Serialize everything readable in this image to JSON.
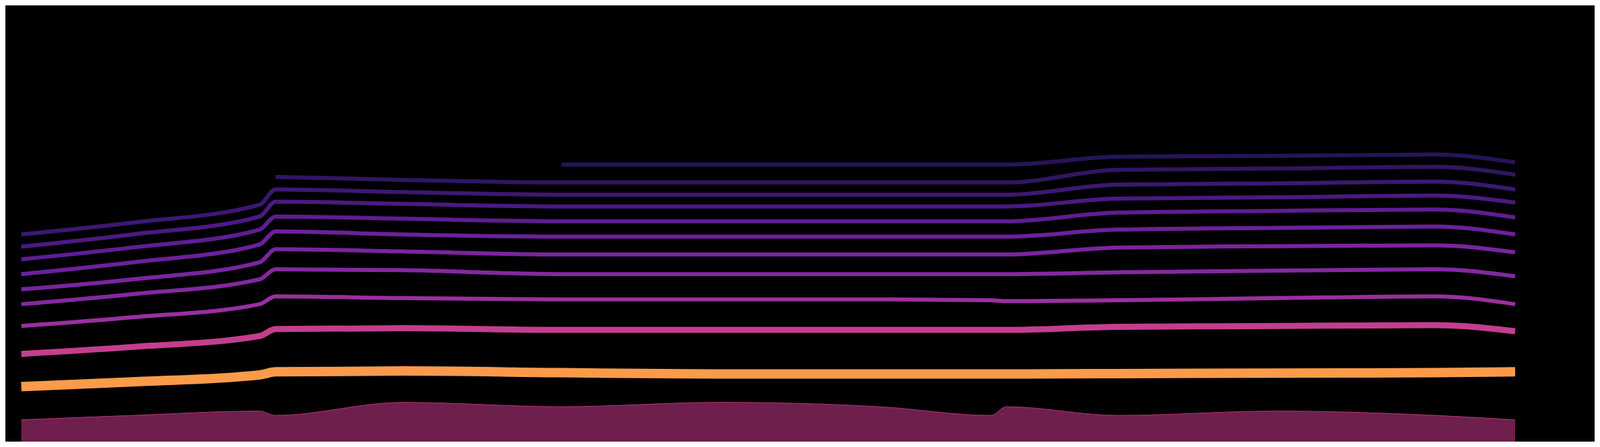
{
  "chart_data": {
    "type": "line",
    "tick_labels": false,
    "grid": false,
    "x": [
      1,
      8,
      16,
      17,
      25,
      35,
      45,
      55,
      62,
      63,
      70,
      80,
      90,
      95
    ],
    "xlim": [
      0,
      100
    ],
    "xticks": [
      0,
      100
    ],
    "ylim": [
      0,
      100
    ],
    "yticks": [
      0,
      100
    ],
    "series": [
      {
        "type": "area",
        "color": "#b8347e",
        "values": [
          5,
          6,
          7,
          6,
          9,
          8,
          9,
          8,
          6,
          8,
          6,
          7,
          6,
          5
        ]
      },
      {
        "color": "#fb9b4a",
        "values": [
          12.6,
          13.7,
          15.3,
          16,
          16.2,
          15.8,
          15.5,
          15.5,
          15.5,
          15.5,
          15.6,
          15.7,
          15.8,
          16
        ]
      },
      {
        "color": "#c43e8f",
        "values": [
          20.1,
          21.7,
          24.2,
          25.8,
          26,
          25.6,
          25.6,
          25.6,
          25.6,
          25.6,
          26.3,
          26.5,
          26.7,
          25.3
        ]
      },
      {
        "color": "#9a2f9f",
        "values": [
          26.5,
          28.5,
          31.5,
          33.3,
          32.9,
          32.6,
          32.6,
          32.6,
          32.4,
          32.2,
          32.4,
          32.9,
          33.3,
          31.5
        ]
      },
      {
        "color": "#8428a0",
        "values": [
          31.5,
          33.8,
          37.2,
          39.5,
          39.3,
          38.4,
          38.4,
          38.4,
          38.4,
          38.4,
          38.8,
          39.2,
          39.5,
          37.9
        ]
      },
      {
        "color": "#7a24a0",
        "values": [
          34.9,
          37.2,
          41.1,
          44.1,
          43.6,
          42.9,
          42.9,
          42.9,
          42.9,
          42.9,
          44.5,
          44.8,
          45,
          43.4
        ]
      },
      {
        "color": "#6c209c",
        "values": [
          38.4,
          41.1,
          45.2,
          48.2,
          47.5,
          47,
          47,
          47,
          47,
          47,
          48.6,
          49,
          49.3,
          47.5
        ]
      },
      {
        "color": "#5e1d94",
        "values": [
          41.8,
          44.5,
          48.6,
          51.6,
          51.1,
          50.5,
          50.5,
          50.5,
          50.5,
          50.5,
          52.5,
          52.9,
          53.2,
          51.4
        ]
      },
      {
        "color": "#4a1a82",
        "values": [
          44.7,
          47.5,
          51.6,
          55,
          54.5,
          53.9,
          53.9,
          53.9,
          53.9,
          53.9,
          55.7,
          56,
          56.4,
          54.8
        ]
      },
      {
        "color": "#3c1872",
        "values": [
          47.5,
          50.2,
          54.3,
          57.8,
          57.2,
          56.6,
          56.6,
          56.6,
          56.6,
          56.6,
          58.9,
          59.2,
          59.6,
          57.8
        ]
      },
      {
        "color": "#301663",
        "values": [
          null,
          null,
          null,
          60.7,
          60,
          59.4,
          59.4,
          59.4,
          59.4,
          59.4,
          62.3,
          62.6,
          63,
          61.2
        ]
      },
      {
        "color": "#261458",
        "values": [
          null,
          null,
          null,
          null,
          null,
          63.5,
          63.5,
          63.5,
          63.5,
          63.5,
          65.3,
          65.5,
          65.8,
          64
        ]
      }
    ]
  }
}
